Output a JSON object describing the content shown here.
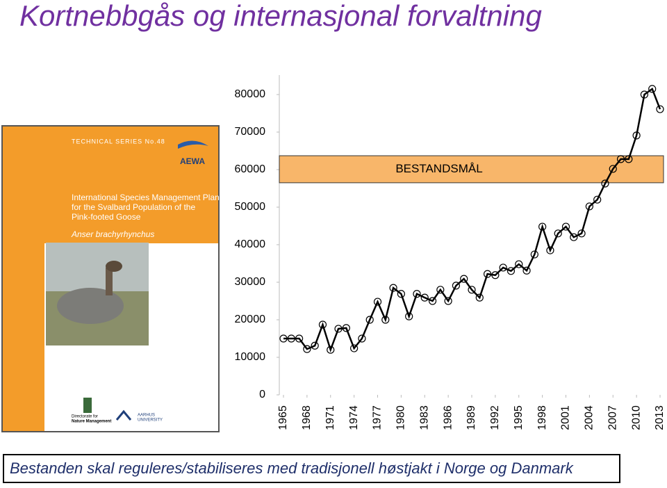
{
  "title": "Kortnebbgås og internasjonal forvaltning",
  "caption": "Bestanden skal reguleres/stabiliseres med tradisjonell høstjakt i Norge og Danmark",
  "cover": {
    "series": "TECHNICAL SERIES No.48",
    "logo": "AEWA",
    "heading": [
      "International Species Management Plan",
      "for the Svalbard Population of the",
      "Pink-footed Goose"
    ],
    "species": "Anser brachyrhynchus",
    "publishers": [
      "Directorate for",
      "Nature Management",
      "AARHUS",
      "UNIVERSITY"
    ]
  },
  "chart_data": {
    "type": "line",
    "x": [
      1965,
      1966,
      1967,
      1968,
      1969,
      1970,
      1971,
      1972,
      1973,
      1974,
      1975,
      1976,
      1977,
      1978,
      1979,
      1980,
      1981,
      1982,
      1983,
      1984,
      1985,
      1986,
      1987,
      1988,
      1989,
      1990,
      1991,
      1992,
      1993,
      1994,
      1995,
      1996,
      1997,
      1998,
      1999,
      2000,
      2001,
      2002,
      2003,
      2004,
      2005,
      2006,
      2007,
      2008,
      2009,
      2010,
      2011,
      2012,
      2013
    ],
    "values": [
      15000,
      15000,
      15000,
      12200,
      13100,
      18700,
      12000,
      17600,
      17800,
      12400,
      15000,
      20000,
      24800,
      20000,
      28500,
      26900,
      20900,
      26900,
      25900,
      25000,
      28000,
      25000,
      29100,
      30900,
      28000,
      25900,
      32200,
      31900,
      33900,
      33000,
      34800,
      33100,
      37400,
      44800,
      38500,
      43000,
      44800,
      42000,
      43000,
      50200,
      52000,
      56300,
      60200,
      62800,
      62800,
      69100,
      80000,
      81500,
      76100
    ],
    "color": "#000000",
    "xlim": [
      1965,
      2013
    ],
    "xticks": [
      1965,
      1968,
      1971,
      1974,
      1977,
      1980,
      1983,
      1986,
      1989,
      1992,
      1995,
      1998,
      2001,
      2004,
      2007,
      2010,
      2013
    ],
    "ylim": [
      0,
      80000
    ],
    "yticks": [
      0,
      10000,
      20000,
      30000,
      40000,
      50000,
      60000,
      70000,
      80000
    ],
    "target_label": "BESTANDSMÅL",
    "target_range": [
      56500,
      63700
    ],
    "target_color": "#f8b66a"
  }
}
